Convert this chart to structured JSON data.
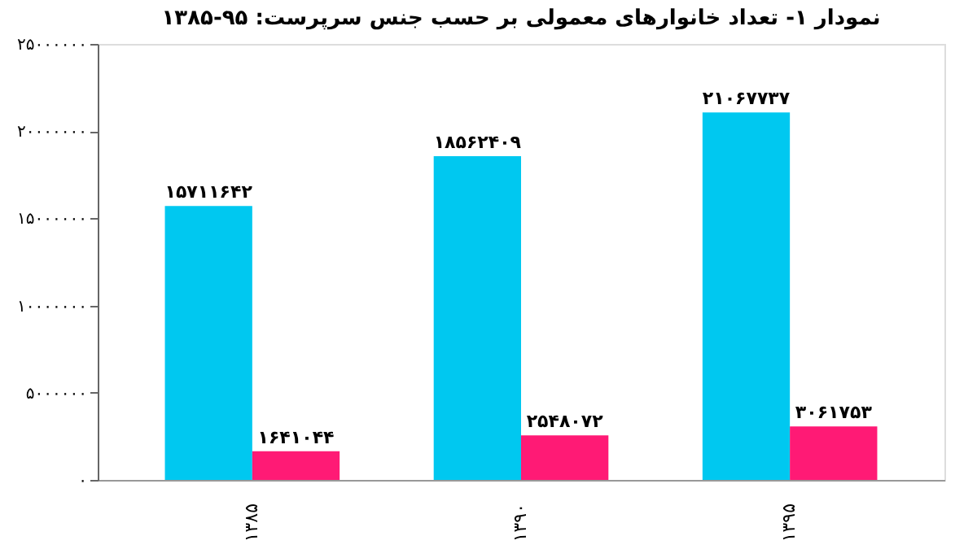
{
  "chart_data": {
    "type": "bar",
    "title": "نمودار ۱- تعداد خانوارهای معمولی بر حسب جنس سرپرست: ۹۵-۱۳۸۵",
    "categories": [
      "۱۳۸۵",
      "۱۳۹۰",
      "۱۳۹۵"
    ],
    "series": [
      {
        "color": "#00c8f0",
        "values": [
          15711642,
          18562409,
          21067737
        ],
        "value_labels": [
          "۱۵۷۱۱۶۴۲",
          "۱۸۵۶۲۴۰۹",
          "۲۱۰۶۷۷۳۷"
        ]
      },
      {
        "color": "#ff1a75",
        "values": [
          1641044,
          2548072,
          3061753
        ],
        "value_labels": [
          "۱۶۴۱۰۴۴",
          "۲۵۴۸۰۷۲",
          "۳۰۶۱۷۵۳"
        ]
      }
    ],
    "ylim": [
      0,
      25000000
    ],
    "yticks": [
      {
        "value": 0,
        "label": "۰"
      },
      {
        "value": 5000000,
        "label": "۵۰۰۰۰۰۰"
      },
      {
        "value": 10000000,
        "label": "۱۰۰۰۰۰۰۰"
      },
      {
        "value": 15000000,
        "label": "۱۵۰۰۰۰۰۰"
      },
      {
        "value": 20000000,
        "label": "۲۰۰۰۰۰۰۰"
      },
      {
        "value": 25000000,
        "label": "۲۵۰۰۰۰۰۰"
      }
    ],
    "grid": false
  }
}
